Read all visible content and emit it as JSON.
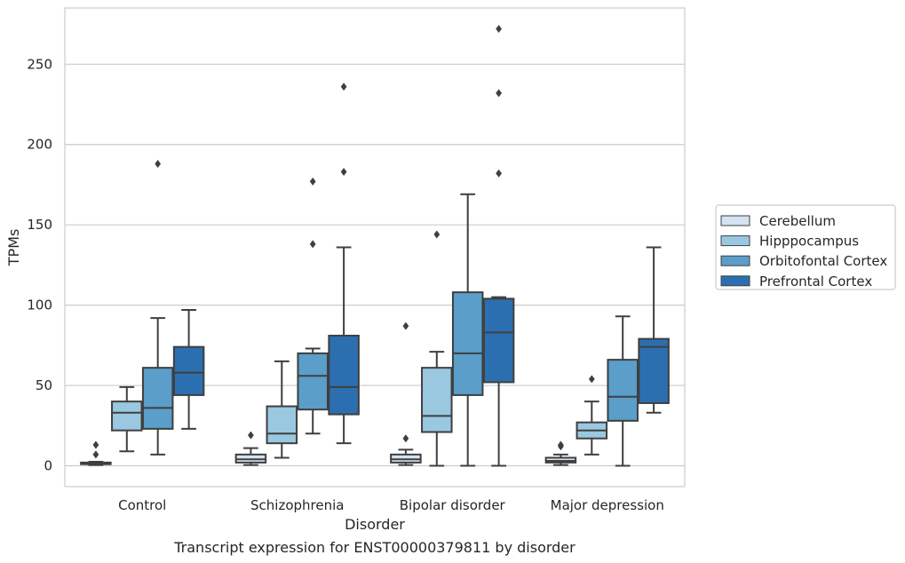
{
  "chart_data": {
    "type": "box",
    "title": "Transcript expression for ENST00000379811 by disorder",
    "xlabel": "Disorder",
    "ylabel": "TPMs",
    "categories": [
      "Control",
      "Schizophrenia",
      "Bipolar disorder",
      "Major depression"
    ],
    "ylim": [
      -13,
      285
    ],
    "yticks": [
      0,
      50,
      100,
      150,
      200,
      250
    ],
    "grid": true,
    "legend_position": "right",
    "legend": [
      "Cerebellum",
      "Hipppocampus",
      "Orbitofontal Cortex",
      "Prefrontal Cortex"
    ],
    "series": [
      {
        "name": "Cerebellum",
        "color": "#d3e3f2",
        "boxes": [
          {
            "whislo": 0.5,
            "q1": 1,
            "med": 1.5,
            "q3": 2,
            "whishi": 2.5,
            "fliers": [
              7,
              13
            ]
          },
          {
            "whislo": 0.5,
            "q1": 2,
            "med": 4,
            "q3": 7,
            "whishi": 11,
            "fliers": [
              19
            ]
          },
          {
            "whislo": 0.5,
            "q1": 2,
            "med": 4,
            "q3": 7,
            "whishi": 10,
            "fliers": [
              17,
              87
            ]
          },
          {
            "whislo": 0.5,
            "q1": 2,
            "med": 3,
            "q3": 5,
            "whishi": 7,
            "fliers": [
              12,
              13
            ]
          }
        ]
      },
      {
        "name": "Hipppocampus",
        "color": "#9ac8e0",
        "boxes": [
          {
            "whislo": 9,
            "q1": 22,
            "med": 33,
            "q3": 40,
            "whishi": 49,
            "fliers": []
          },
          {
            "whislo": 5,
            "q1": 14,
            "med": 20,
            "q3": 37,
            "whishi": 65,
            "fliers": []
          },
          {
            "whislo": 0,
            "q1": 21,
            "med": 31,
            "q3": 61,
            "whishi": 71,
            "fliers": [
              144
            ]
          },
          {
            "whislo": 7,
            "q1": 17,
            "med": 22,
            "q3": 27,
            "whishi": 40,
            "fliers": [
              54
            ]
          }
        ]
      },
      {
        "name": "Orbitofontal Cortex",
        "color": "#5a9ec9",
        "boxes": [
          {
            "whislo": 7,
            "q1": 23,
            "med": 36,
            "q3": 61,
            "whishi": 92,
            "fliers": [
              188
            ]
          },
          {
            "whislo": 20,
            "q1": 35,
            "med": 56,
            "q3": 70,
            "whishi": 73,
            "fliers": [
              138,
              177
            ]
          },
          {
            "whislo": 0,
            "q1": 44,
            "med": 70,
            "q3": 108,
            "whishi": 169,
            "fliers": []
          },
          {
            "whislo": 0,
            "q1": 28,
            "med": 43,
            "q3": 66,
            "whishi": 93,
            "fliers": []
          }
        ]
      },
      {
        "name": "Prefrontal Cortex",
        "color": "#2c6fb0",
        "boxes": [
          {
            "whislo": 23,
            "q1": 44,
            "med": 58,
            "q3": 74,
            "whishi": 97,
            "fliers": []
          },
          {
            "whislo": 14,
            "q1": 32,
            "med": 49,
            "q3": 81,
            "whishi": 136,
            "fliers": [
              183,
              236
            ]
          },
          {
            "whislo": 0,
            "q1": 52,
            "med": 83,
            "q3": 104,
            "whishi": 105,
            "fliers": [
              182,
              232,
              272
            ]
          },
          {
            "whislo": 33,
            "q1": 39,
            "med": 74,
            "q3": 79,
            "whishi": 136,
            "fliers": []
          }
        ]
      }
    ]
  }
}
